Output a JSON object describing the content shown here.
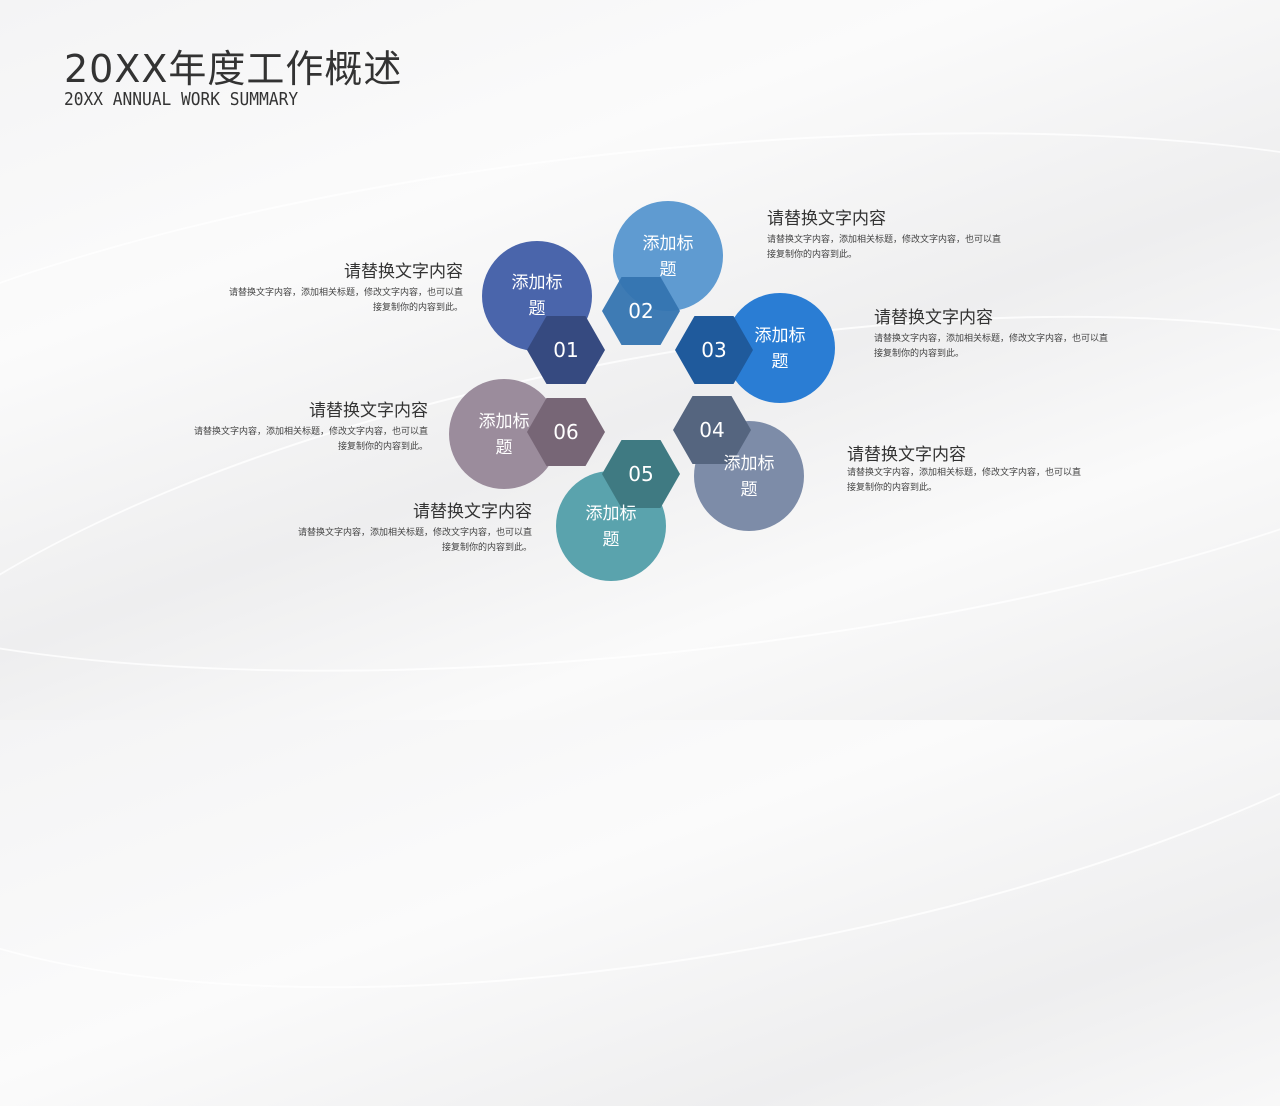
{
  "header": {
    "title": "20XX年度工作概述",
    "subtitle": "20XX ANNUAL WORK SUMMARY"
  },
  "items": [
    {
      "number": "01",
      "label": "添加标题",
      "heading": "请替换文字内容",
      "desc": "请替换文字内容，添加相关标题，修改文字内容，也可以直接复制你的内容到此。",
      "circle_color": "#4a65ab",
      "hex_color": "#364a80"
    },
    {
      "number": "02",
      "label": "添加标题",
      "heading": "请替换文字内容",
      "desc": "请替换文字内容，添加相关标题，修改文字内容，也可以直接复制你的内容到此。",
      "circle_color": "#5f9bd1",
      "hex_color": "#3474b0"
    },
    {
      "number": "03",
      "label": "添加标题",
      "heading": "请替换文字内容",
      "desc": "请替换文字内容，添加相关标题，修改文字内容，也可以直接复制你的内容到此。",
      "circle_color": "#2a7dd4",
      "hex_color": "#1f5a9c"
    },
    {
      "number": "04",
      "label": "添加标题",
      "heading": "请替换文字内容",
      "desc": "请替换文字内容，添加相关标题，修改文字内容，也可以直接复制你的内容到此。",
      "circle_color": "#7d8ca8",
      "hex_color": "#55657f"
    },
    {
      "number": "05",
      "label": "添加标题",
      "heading": "请替换文字内容",
      "desc": "请替换文字内容，添加相关标题，修改文字内容，也可以直接复制你的内容到此。",
      "circle_color": "#5aa3ad",
      "hex_color": "#3f7a82"
    },
    {
      "number": "06",
      "label": "添加标题",
      "heading": "请替换文字内容",
      "desc": "请替换文字内容，添加相关标题，修改文字内容，也可以直接复制你的内容到此。",
      "circle_color": "#9b8c9c",
      "hex_color": "#776676"
    }
  ]
}
